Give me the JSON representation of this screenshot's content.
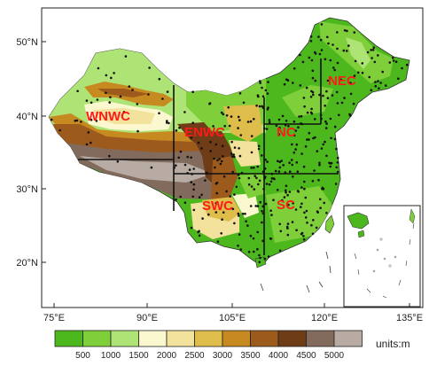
{
  "map": {
    "lat_ticks": [
      "50°N",
      "40°N",
      "30°N",
      "20°N"
    ],
    "lon_ticks": [
      "75°E",
      "90°E",
      "105°E",
      "120°E",
      "135°E"
    ],
    "regions": [
      {
        "label": "WNWC"
      },
      {
        "label": "ENWC"
      },
      {
        "label": "NC"
      },
      {
        "label": "NEC"
      },
      {
        "label": "SWC"
      },
      {
        "label": "SC"
      }
    ],
    "region_label_color": "#ff1a1a",
    "station_color": "#111111"
  },
  "legend": {
    "colors": [
      "#4cb81e",
      "#7fcf3a",
      "#aee476",
      "#fbf7cf",
      "#f2e29c",
      "#dfbd4a",
      "#c68a20",
      "#9d5a1d",
      "#6e3c16",
      "#826b5c",
      "#b7aba3"
    ],
    "labels": [
      "500",
      "1000",
      "1500",
      "2000",
      "2500",
      "3000",
      "3500",
      "4000",
      "4500",
      "5000"
    ],
    "units": "units:m"
  }
}
